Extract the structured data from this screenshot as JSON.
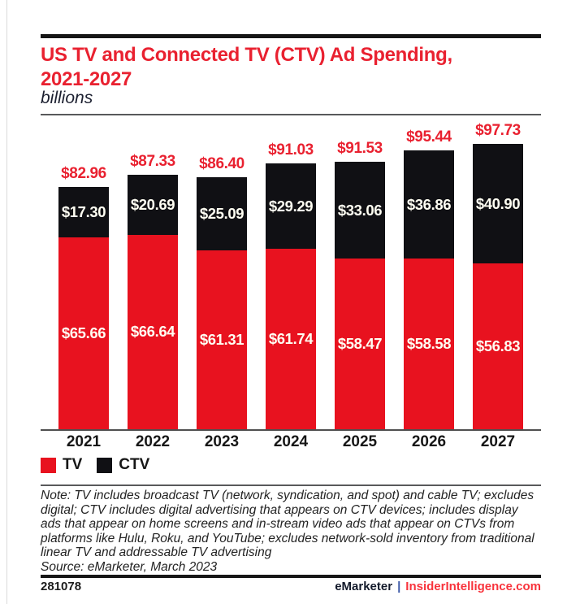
{
  "header": {
    "title_line1": "US TV and Connected TV (CTV) Ad Spending,",
    "title_line2": "2021-2027",
    "subtitle": "billions"
  },
  "chart_data": {
    "type": "bar",
    "stacked": true,
    "title": "US TV and Connected TV (CTV) Ad Spending, 2021-2027",
    "unit": "billions",
    "value_prefix": "$",
    "categories": [
      "2021",
      "2022",
      "2023",
      "2024",
      "2025",
      "2026",
      "2027"
    ],
    "series": [
      {
        "name": "TV",
        "color": "#e8121f",
        "values": [
          65.66,
          66.64,
          61.31,
          61.74,
          58.47,
          58.58,
          56.83
        ]
      },
      {
        "name": "CTV",
        "color": "#101014",
        "values": [
          17.3,
          20.69,
          25.09,
          29.29,
          33.06,
          36.86,
          40.9
        ]
      }
    ],
    "totals": [
      82.96,
      87.33,
      86.4,
      91.03,
      91.53,
      95.44,
      97.73
    ],
    "legend_position": "bottom-left",
    "grid": false,
    "ylim": [
      0,
      105
    ]
  },
  "note": {
    "text": "Note: TV includes broadcast TV (network, syndication, and spot) and cable TV; excludes digital; CTV includes digital advertising that appears on CTV devices; includes display ads that appear on home screens and in-stream video ads that appear on CTVs from platforms like Hulu, Roku, and YouTube; excludes network-sold inventory from traditional linear TV and addressable TV advertising",
    "source": "Source: eMarketer, March 2023"
  },
  "footer": {
    "chart_id": "281078",
    "brand_left": "eMarketer",
    "brand_separator": "|",
    "brand_right": "InsiderIntelligence.com"
  },
  "colors": {
    "accent_red": "#e92130",
    "bar_red": "#e8121f",
    "bar_black": "#101014",
    "label_white": "#fffef2"
  }
}
